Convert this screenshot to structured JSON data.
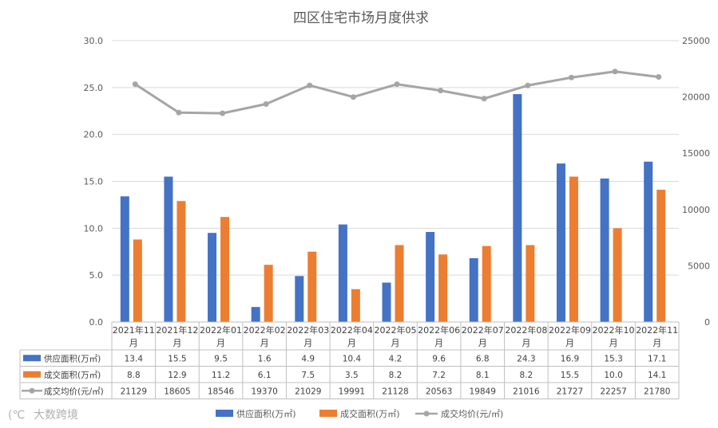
{
  "chart_data": {
    "type": "bar",
    "title": "四区住宅市场月度供求",
    "categories": [
      [
        "2021年11",
        "月"
      ],
      [
        "2021年12",
        "月"
      ],
      [
        "2022年01",
        "月"
      ],
      [
        "2022年02",
        "月"
      ],
      [
        "2022年03",
        "月"
      ],
      [
        "2022年04",
        "月"
      ],
      [
        "2022年05",
        "月"
      ],
      [
        "2022年06",
        "月"
      ],
      [
        "2022年07",
        "月"
      ],
      [
        "2022年08",
        "月"
      ],
      [
        "2022年09",
        "月"
      ],
      [
        "2022年10",
        "月"
      ],
      [
        "2022年11",
        "月"
      ]
    ],
    "series": [
      {
        "name": "供应面积(万㎡)",
        "type": "bar",
        "axis": "left",
        "color": "#4472c4",
        "values": [
          13.4,
          15.5,
          9.5,
          1.6,
          4.9,
          10.4,
          4.2,
          9.6,
          6.8,
          24.3,
          16.9,
          15.3,
          17.1
        ]
      },
      {
        "name": "成交面积(万㎡)",
        "type": "bar",
        "axis": "left",
        "color": "#ed7d31",
        "values": [
          8.8,
          12.9,
          11.2,
          6.1,
          7.5,
          3.5,
          8.2,
          7.2,
          8.1,
          8.2,
          15.5,
          10.0,
          14.1
        ]
      },
      {
        "name": "成交均价(元/㎡)",
        "type": "line",
        "axis": "right",
        "color": "#a5a5a5",
        "values": [
          21129,
          18605,
          18546,
          19370,
          21029,
          19991,
          21128,
          20563,
          19849,
          21016,
          21727,
          22257,
          21780
        ]
      }
    ],
    "left_axis": {
      "min": 0,
      "max": 30,
      "ticks": [
        "0.0",
        "5.0",
        "10.0",
        "15.0",
        "20.0",
        "25.0",
        "30.0"
      ]
    },
    "right_axis": {
      "min": 0,
      "max": 25000,
      "ticks": [
        "0",
        "5000",
        "10000",
        "15000",
        "20000",
        "25000"
      ]
    },
    "grid": true,
    "data_table": true,
    "legend_position": "bottom"
  },
  "watermark": {
    "text": "大数跨境"
  }
}
